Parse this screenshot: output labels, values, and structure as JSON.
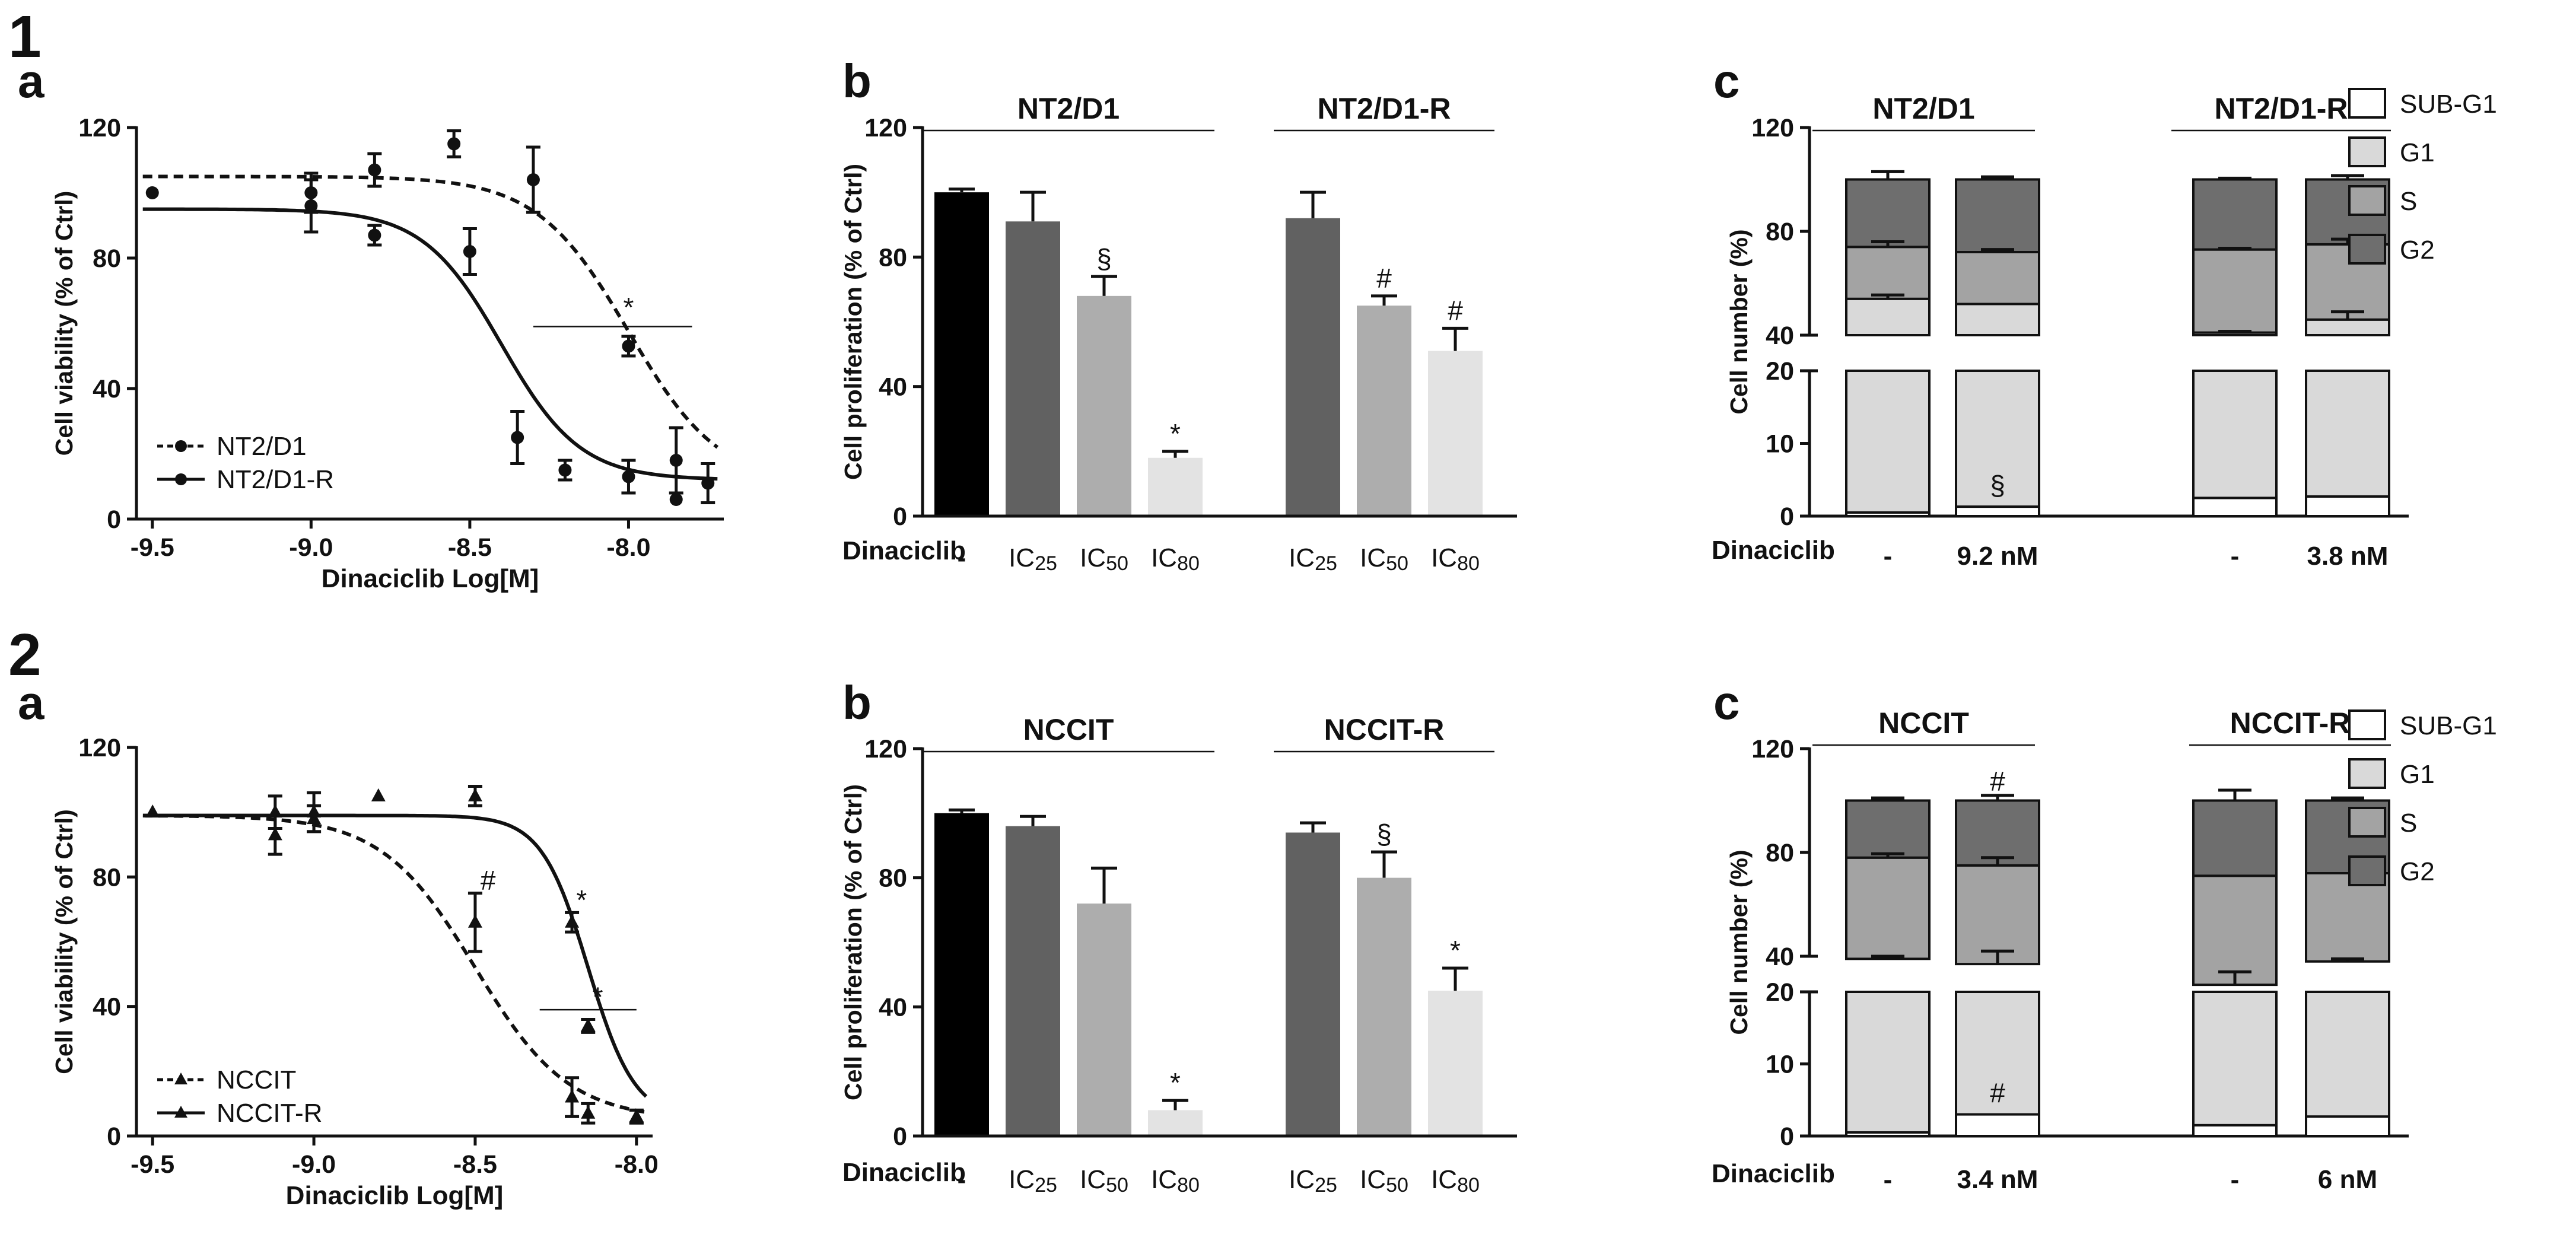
{
  "figure": {
    "label_1": "1",
    "label_2": "2"
  },
  "chart_data": [
    {
      "id": "p1a",
      "panel": "a",
      "type": "line",
      "subtype": "dose-response",
      "xlabel": "Dinaciclib Log[M]",
      "ylabel": "Cell viability (% of Ctrl)",
      "xlim": [
        -9.55,
        -7.7
      ],
      "ylim": [
        0,
        120
      ],
      "xticks": [
        -9.5,
        -9.0,
        -8.5,
        -8.0
      ],
      "xtick_labels": [
        "-9.5",
        "-9.0",
        "-8.5",
        "-8.0"
      ],
      "yticks": [
        0,
        40,
        80,
        120
      ],
      "ytick_labels": [
        "0",
        "40",
        "80",
        "120"
      ],
      "marker": "circle",
      "series": [
        {
          "name": "NT2/D1",
          "style": "dashed",
          "top": 105,
          "bottom": 10,
          "ec50": -8.0,
          "hill": 3.0,
          "x": [
            -9.5,
            -9.0,
            -8.8,
            -8.55,
            -8.3,
            -8.0,
            -7.85,
            -7.75
          ],
          "y": [
            100,
            100,
            107,
            115,
            104,
            53,
            18,
            11
          ],
          "err": [
            0,
            6,
            5,
            4,
            10,
            3,
            10,
            6
          ]
        },
        {
          "name": "NT2/D1-R",
          "style": "solid",
          "top": 95,
          "bottom": 12,
          "ec50": -8.4,
          "hill": 3.5,
          "x": [
            -9.0,
            -8.8,
            -8.5,
            -8.35,
            -8.2,
            -8.0,
            -7.85
          ],
          "y": [
            96,
            87,
            82,
            25,
            15,
            13,
            6
          ],
          "err": [
            8,
            3,
            7,
            8,
            3,
            5,
            0
          ]
        }
      ],
      "annotations": [
        {
          "text": "*",
          "x": -8.0,
          "y": 62,
          "bar_from": -8.3,
          "bar_to": -7.8,
          "bar_y": 59
        }
      ]
    },
    {
      "id": "p1b",
      "panel": "b",
      "type": "bar",
      "ylabel": "Cell proliferation (% of Ctrl)",
      "ylim": [
        0,
        120
      ],
      "yticks": [
        0,
        40,
        80,
        120
      ],
      "ytick_labels": [
        "0",
        "40",
        "80",
        "120"
      ],
      "row_label": "Dinaciclib",
      "groups": [
        {
          "name": "NT2/D1",
          "bars": [
            {
              "label": "-",
              "value": 100,
              "err": 1,
              "color": "#000000",
              "mark": ""
            },
            {
              "label": "IC25",
              "value": 91,
              "err": 9,
              "color": "#616161",
              "mark": ""
            },
            {
              "label": "IC50",
              "value": 68,
              "err": 6,
              "color": "#adadad",
              "mark": "§"
            },
            {
              "label": "IC80",
              "value": 18,
              "err": 2,
              "color": "#e3e3e3",
              "mark": "*"
            }
          ]
        },
        {
          "name": "NT2/D1-R",
          "bars": [
            {
              "label": "IC25",
              "value": 92,
              "err": 8,
              "color": "#616161",
              "mark": ""
            },
            {
              "label": "IC50",
              "value": 65,
              "err": 3,
              "color": "#adadad",
              "mark": "#"
            },
            {
              "label": "IC80",
              "value": 51,
              "err": 7,
              "color": "#e3e3e3",
              "mark": "#"
            }
          ]
        }
      ]
    },
    {
      "id": "p1c",
      "panel": "c",
      "type": "bar",
      "subtype": "stacked-broken-axis",
      "ylabel": "Cell number (%)",
      "yticks_upper": [
        40,
        80,
        120
      ],
      "yticks_lower": [
        0,
        10,
        20
      ],
      "row_label": "Dinaciclib",
      "stack_order": [
        "SUB-G1",
        "G1",
        "S",
        "G2"
      ],
      "legend": [
        {
          "name": "SUB-G1",
          "color": "#ffffff"
        },
        {
          "name": "G1",
          "color": "#d9d9d9"
        },
        {
          "name": "S",
          "color": "#a3a3a3"
        },
        {
          "name": "G2",
          "color": "#6e6e6e"
        }
      ],
      "groups": [
        {
          "name": "NT2/D1",
          "bars": [
            {
              "label": "-",
              "sub_g1": 0.5,
              "g1": 53.5,
              "s": 20,
              "g2": 26,
              "err_total": 3,
              "err_s": 2,
              "err_g1": 1.5,
              "mark": ""
            },
            {
              "label": "9.2 nM",
              "sub_g1": 1.3,
              "g1": 50.7,
              "s": 20,
              "g2": 28,
              "err_total": 1,
              "err_s": 1,
              "err_g1": 0,
              "mark": "§"
            }
          ]
        },
        {
          "name": "NT2/D1-R",
          "bars": [
            {
              "label": "-",
              "sub_g1": 2.5,
              "g1": 38.5,
              "s": 32,
              "g2": 27,
              "err_total": 0.5,
              "err_s": 0.5,
              "err_g1": 0.5,
              "mark": ""
            },
            {
              "label": "3.8 nM",
              "sub_g1": 2.7,
              "g1": 43.3,
              "s": 29,
              "g2": 25,
              "err_total": 1.5,
              "err_s": 2,
              "err_g1": 3,
              "mark": ""
            }
          ]
        }
      ]
    },
    {
      "id": "p2a",
      "panel": "a",
      "type": "line",
      "subtype": "dose-response",
      "xlabel": "Dinaciclib Log[M]",
      "ylabel": "Cell viability (% of Ctrl)",
      "xlim": [
        -9.55,
        -7.95
      ],
      "ylim": [
        0,
        120
      ],
      "xticks": [
        -9.5,
        -9.0,
        -8.5,
        -8.0
      ],
      "xtick_labels": [
        "-9.5",
        "-9.0",
        "-8.5",
        "-8.0"
      ],
      "yticks": [
        0,
        40,
        80,
        120
      ],
      "ytick_labels": [
        "0",
        "40",
        "80",
        "120"
      ],
      "marker": "triangle",
      "series": [
        {
          "name": "NCCIT",
          "style": "dashed",
          "top": 99,
          "bottom": 5,
          "ec50": -8.5,
          "hill": 3.0,
          "x": [
            -9.5,
            -9.12,
            -9.0,
            -8.8,
            -8.5,
            -8.2,
            -8.15,
            -8.0
          ],
          "y": [
            100,
            93,
            98,
            105,
            66,
            12,
            7,
            6
          ],
          "err": [
            0,
            6,
            4,
            0,
            9,
            6,
            3,
            2
          ]
        },
        {
          "name": "NCCIT-R",
          "style": "solid",
          "top": 99,
          "bottom": 5,
          "ec50": -8.15,
          "hill": 6.0,
          "x": [
            -9.12,
            -9.0,
            -8.5,
            -8.2,
            -8.15,
            -8.0
          ],
          "y": [
            100,
            100,
            105,
            66,
            34,
            6
          ],
          "err": [
            5,
            6,
            3,
            3,
            2,
            2
          ]
        }
      ],
      "annotations": [
        {
          "text": "#",
          "x": -8.46,
          "y": 76
        },
        {
          "text": "*",
          "x": -8.17,
          "y": 70
        },
        {
          "text": "*",
          "x": -8.12,
          "y": 40,
          "bar_from": -8.3,
          "bar_to": -8.0,
          "bar_y": 39
        }
      ]
    },
    {
      "id": "p2b",
      "panel": "b",
      "type": "bar",
      "ylabel": "Cell proliferation (% of Ctrl)",
      "ylim": [
        0,
        120
      ],
      "yticks": [
        0,
        40,
        80,
        120
      ],
      "ytick_labels": [
        "0",
        "40",
        "80",
        "120"
      ],
      "row_label": "Dinaciclib",
      "groups": [
        {
          "name": "NCCIT",
          "bars": [
            {
              "label": "-",
              "value": 100,
              "err": 1,
              "color": "#000000",
              "mark": ""
            },
            {
              "label": "IC25",
              "value": 96,
              "err": 3,
              "color": "#616161",
              "mark": ""
            },
            {
              "label": "IC50",
              "value": 72,
              "err": 11,
              "color": "#adadad",
              "mark": ""
            },
            {
              "label": "IC80",
              "value": 8,
              "err": 3,
              "color": "#e3e3e3",
              "mark": "*"
            }
          ]
        },
        {
          "name": "NCCIT-R",
          "bars": [
            {
              "label": "IC25",
              "value": 94,
              "err": 3,
              "color": "#616161",
              "mark": ""
            },
            {
              "label": "IC50",
              "value": 80,
              "err": 8,
              "color": "#adadad",
              "mark": "§"
            },
            {
              "label": "IC80",
              "value": 45,
              "err": 7,
              "color": "#e3e3e3",
              "mark": "*"
            }
          ]
        }
      ]
    },
    {
      "id": "p2c",
      "panel": "c",
      "type": "bar",
      "subtype": "stacked-broken-axis",
      "ylabel": "Cell number (%)",
      "yticks_upper": [
        40,
        80,
        120
      ],
      "yticks_lower": [
        0,
        10,
        20
      ],
      "row_label": "Dinaciclib",
      "stack_order": [
        "SUB-G1",
        "G1",
        "S",
        "G2"
      ],
      "legend": [
        {
          "name": "SUB-G1",
          "color": "#ffffff"
        },
        {
          "name": "G1",
          "color": "#d9d9d9"
        },
        {
          "name": "S",
          "color": "#a3a3a3"
        },
        {
          "name": "G2",
          "color": "#6e6e6e"
        }
      ],
      "groups": [
        {
          "name": "NCCIT",
          "bars": [
            {
              "label": "-",
              "sub_g1": 0.5,
              "g1": 38.5,
              "s": 39,
              "g2": 22,
              "err_total": 1,
              "err_s": 1.5,
              "err_g1": 1,
              "mark": ""
            },
            {
              "label": "3.4 nM",
              "sub_g1": 3,
              "g1": 34,
              "s": 38,
              "g2": 25,
              "err_total": 2,
              "err_s": 3,
              "err_g1": 5,
              "mark": "#",
              "mark_top": "#"
            }
          ]
        },
        {
          "name": "NCCIT-R",
          "bars": [
            {
              "label": "-",
              "sub_g1": 1.5,
              "g1": 27.5,
              "s": 42,
              "g2": 29,
              "err_total": 4,
              "err_s": 0,
              "err_g1": 5,
              "mark": ""
            },
            {
              "label": "6 nM",
              "sub_g1": 2.7,
              "g1": 35.3,
              "s": 34,
              "g2": 28,
              "err_total": 1,
              "err_s": 0,
              "err_g1": 1,
              "mark": ""
            }
          ]
        }
      ]
    }
  ]
}
